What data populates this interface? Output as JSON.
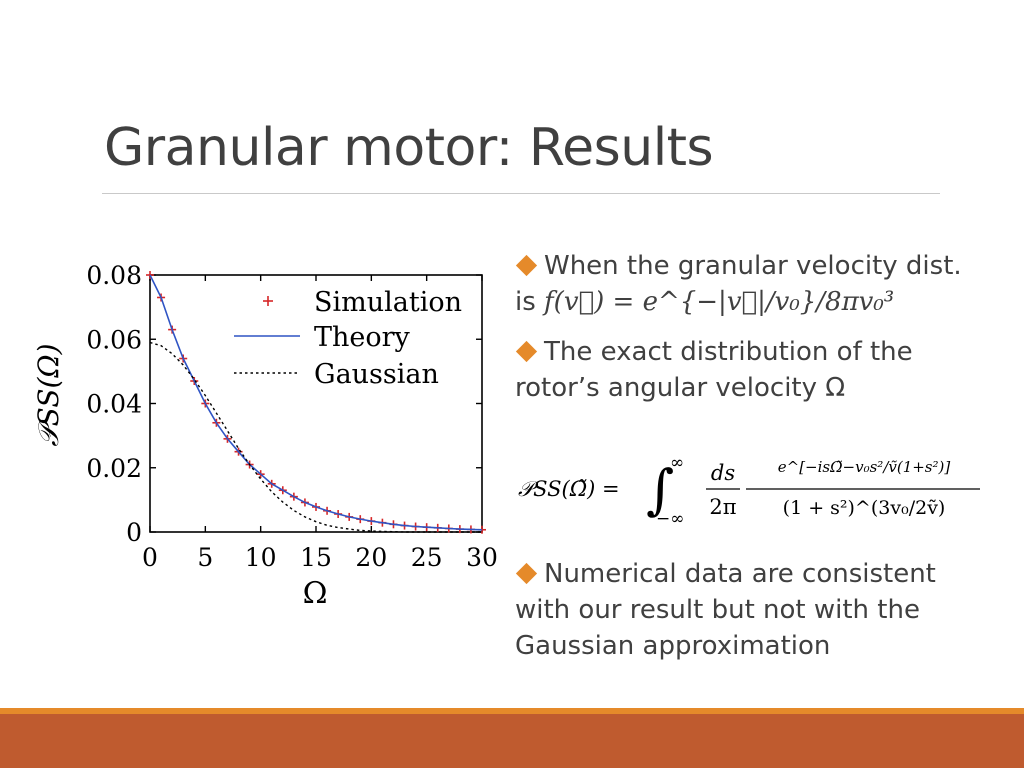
{
  "slide": {
    "title": "Granular motor: Results"
  },
  "bullets": [
    {
      "text_a": "When the granular velocity dist.",
      "text_b_prefix": "is ",
      "formula": "f(v⃗) = e^{−|v⃗|/v₀}/8πv₀³"
    },
    {
      "text": "The exact distribution of the rotor’s angular velocity Ω"
    },
    {
      "text": "Numerical data are consistent with our result but not with the Gaussian approximation"
    }
  ],
  "formula": {
    "lhs": "𝒫SS(Ω̃) =",
    "integral_upper": "∞",
    "integral_lower": "−∞",
    "frac1_num": "ds",
    "frac1_den": "2π",
    "frac2_num": "e^[−isΩ̃−v₀s²/ṽ(1+s²)]",
    "frac2_den": "(1 + s²)^(3v₀/2ṽ)"
  },
  "chart_data": {
    "type": "line",
    "xlabel": "Ω",
    "ylabel": "𝒫SS(Ω)",
    "xlim": [
      0,
      30
    ],
    "ylim": [
      0,
      0.08
    ],
    "x_ticks": [
      "0",
      "5",
      "10",
      "15",
      "20",
      "25",
      "30"
    ],
    "y_ticks": [
      "0",
      "0.02",
      "0.04",
      "0.06",
      "0.08"
    ],
    "legend_position": "top-right",
    "series": [
      {
        "name": "Simulation",
        "style": "markers",
        "color": "#d62728",
        "x": [
          0,
          1,
          2,
          3,
          4,
          5,
          6,
          7,
          8,
          9,
          10,
          11,
          12,
          13,
          14,
          15,
          16,
          17,
          18,
          19,
          20,
          21,
          22,
          23,
          24,
          25,
          26,
          27,
          28,
          29,
          30
        ],
        "y": [
          0.08,
          0.073,
          0.063,
          0.054,
          0.047,
          0.04,
          0.034,
          0.029,
          0.025,
          0.021,
          0.018,
          0.015,
          0.013,
          0.011,
          0.0092,
          0.0078,
          0.0066,
          0.0056,
          0.0047,
          0.004,
          0.0034,
          0.0029,
          0.0024,
          0.002,
          0.0017,
          0.0015,
          0.0013,
          0.0011,
          0.0009,
          0.0008,
          0.0007
        ]
      },
      {
        "name": "Theory",
        "style": "solid",
        "color": "#2f54c4",
        "x": [
          0,
          1,
          2,
          3,
          4,
          5,
          6,
          7,
          8,
          9,
          10,
          11,
          12,
          13,
          14,
          15,
          16,
          17,
          18,
          19,
          20,
          21,
          22,
          23,
          24,
          25,
          26,
          27,
          28,
          29,
          30
        ],
        "y": [
          0.08,
          0.073,
          0.063,
          0.054,
          0.047,
          0.04,
          0.034,
          0.029,
          0.025,
          0.021,
          0.018,
          0.015,
          0.013,
          0.011,
          0.0092,
          0.0078,
          0.0066,
          0.0056,
          0.0047,
          0.004,
          0.0034,
          0.0029,
          0.0024,
          0.002,
          0.0017,
          0.0015,
          0.0013,
          0.0011,
          0.0009,
          0.0008,
          0.0007
        ]
      },
      {
        "name": "Gaussian",
        "style": "dotted",
        "color": "#000000",
        "x": [
          0,
          1,
          2,
          3,
          4,
          5,
          6,
          7,
          8,
          9,
          10,
          11,
          12,
          13,
          14,
          15,
          16,
          17,
          18,
          19,
          20,
          21,
          22,
          23,
          24,
          25,
          26,
          27,
          28,
          29,
          30
        ],
        "y": [
          0.059,
          0.058,
          0.0555,
          0.052,
          0.0475,
          0.0425,
          0.037,
          0.0315,
          0.026,
          0.021,
          0.0165,
          0.0125,
          0.0093,
          0.0067,
          0.0047,
          0.0032,
          0.0021,
          0.0014,
          0.0009,
          0.0005,
          0.0003,
          0.0002,
          0.0001,
          0.0,
          0.0,
          0.0,
          0.0,
          0.0,
          0.0,
          0.0,
          0.0
        ]
      }
    ]
  },
  "colors": {
    "accent_orange": "#e58a2a",
    "footer_rust": "#bf5b2f"
  }
}
